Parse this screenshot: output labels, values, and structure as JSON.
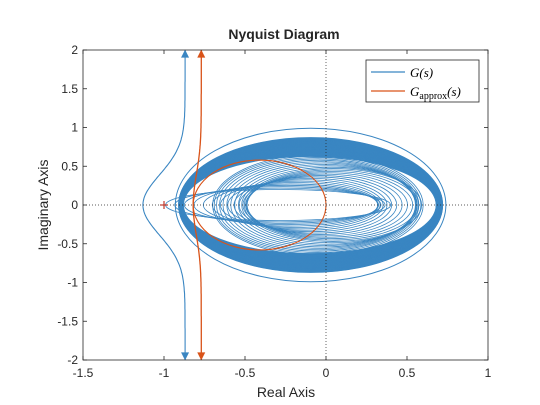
{
  "chart_data": {
    "type": "line",
    "title": "Nyquist Diagram",
    "xlabel": "Real Axis",
    "ylabel": "Imaginary Axis",
    "xlim": [
      -1.5,
      1
    ],
    "ylim": [
      -2,
      2
    ],
    "xticks": [
      -1.5,
      -1,
      -0.5,
      0,
      0.5,
      1
    ],
    "yticks": [
      -2,
      -1.5,
      -1,
      -0.5,
      0,
      0.5,
      1,
      1.5,
      2
    ],
    "xtick_labels": [
      "-1.5",
      "-1",
      "-0.5",
      "0",
      "0.5",
      "1"
    ],
    "ytick_labels": [
      "-2",
      "-1.5",
      "-1",
      "-0.5",
      "0",
      "0.5",
      "1",
      "1.5",
      "2"
    ],
    "grid": false,
    "legend_position": "top-right",
    "critical_point": {
      "x": -1,
      "y": 0,
      "marker": "+"
    },
    "series": [
      {
        "name": "G(s)",
        "legend_main": "G(s)",
        "legend_sub": "",
        "legend_suffix": "",
        "color": "#3a86c2",
        "branch_x_start": -0.87,
        "branch_x_mid": -1.13,
        "branch_y_end": 2,
        "large_loop": {
          "x_min": -0.93,
          "x_max": 0.74,
          "y_half": 0.99
        },
        "band": {
          "x_min": -0.91,
          "x_max": 0.72,
          "y_half": 0.87
        },
        "inner_loops": {
          "x_min": -0.7,
          "x_max": 0.6,
          "y_half": 0.6
        }
      },
      {
        "name": "G_approx(s)",
        "legend_main": "G",
        "legend_sub": "approx",
        "legend_suffix": "(s)",
        "color": "#d95319",
        "branch_x_start": -0.77,
        "branch_x_mid": -0.82,
        "branch_y_end": 2,
        "loop": {
          "x_min": -0.82,
          "x_max": 0.0,
          "y_half": 0.58
        }
      }
    ],
    "colors": {
      "axes": "#262626",
      "reference_lines": "#262626",
      "critical_point": "#c0392b"
    }
  }
}
